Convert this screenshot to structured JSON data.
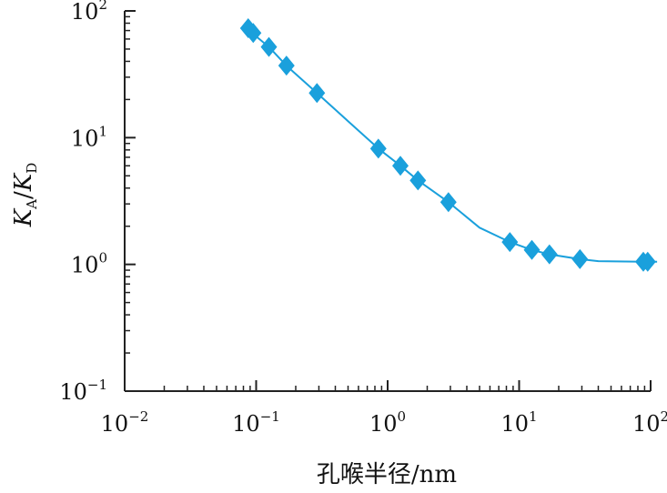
{
  "chart_data": {
    "type": "scatter",
    "xlabel": "孔喉半径/nm",
    "ylabel": {
      "main1": "K",
      "sub1": "A",
      "slash": "/",
      "main2": "K",
      "sub2": "D"
    },
    "x_scale": "log",
    "y_scale": "log",
    "xlim": [
      0.01,
      100
    ],
    "ylim": [
      0.1,
      100
    ],
    "x_ticks": [
      {
        "base": "10",
        "exp": "−2",
        "value": 0.01
      },
      {
        "base": "10",
        "exp": "−1",
        "value": 0.1
      },
      {
        "base": "10",
        "exp": "0",
        "value": 1
      },
      {
        "base": "10",
        "exp": "1",
        "value": 10
      },
      {
        "base": "10",
        "exp": "2",
        "value": 100
      }
    ],
    "y_ticks": [
      {
        "base": "10",
        "exp": "−1",
        "value": 0.1
      },
      {
        "base": "10",
        "exp": "0",
        "value": 1
      },
      {
        "base": "10",
        "exp": "1",
        "value": 10
      },
      {
        "base": "10",
        "exp": "2",
        "value": 100
      }
    ],
    "grid": false,
    "legend": "none",
    "marker": "diamond",
    "series_color": "#1aa0dc",
    "series": [
      {
        "points": [
          {
            "x": 0.087,
            "y": 73
          },
          {
            "x": 0.095,
            "y": 67
          },
          {
            "x": 0.125,
            "y": 52
          },
          {
            "x": 0.17,
            "y": 37
          },
          {
            "x": 0.29,
            "y": 22.5
          },
          {
            "x": 0.85,
            "y": 8.2
          },
          {
            "x": 1.25,
            "y": 6.0
          },
          {
            "x": 1.7,
            "y": 4.6
          },
          {
            "x": 2.9,
            "y": 3.1
          },
          {
            "x": 8.5,
            "y": 1.5
          },
          {
            "x": 12.5,
            "y": 1.3
          },
          {
            "x": 17,
            "y": 1.2
          },
          {
            "x": 29,
            "y": 1.1
          },
          {
            "x": 88,
            "y": 1.05
          },
          {
            "x": 95,
            "y": 1.05
          }
        ],
        "curve": [
          {
            "x": 0.082,
            "y": 74
          },
          {
            "x": 0.1,
            "y": 63
          },
          {
            "x": 0.125,
            "y": 52
          },
          {
            "x": 0.17,
            "y": 37
          },
          {
            "x": 0.29,
            "y": 22.5
          },
          {
            "x": 0.5,
            "y": 13.5
          },
          {
            "x": 0.85,
            "y": 8.2
          },
          {
            "x": 1.25,
            "y": 6.0
          },
          {
            "x": 1.7,
            "y": 4.6
          },
          {
            "x": 2.9,
            "y": 3.1
          },
          {
            "x": 5,
            "y": 1.95
          },
          {
            "x": 8.5,
            "y": 1.5
          },
          {
            "x": 12.5,
            "y": 1.3
          },
          {
            "x": 17,
            "y": 1.2
          },
          {
            "x": 29,
            "y": 1.1
          },
          {
            "x": 40,
            "y": 1.06
          },
          {
            "x": 88,
            "y": 1.05
          },
          {
            "x": 112,
            "y": 1.05
          }
        ]
      }
    ]
  }
}
